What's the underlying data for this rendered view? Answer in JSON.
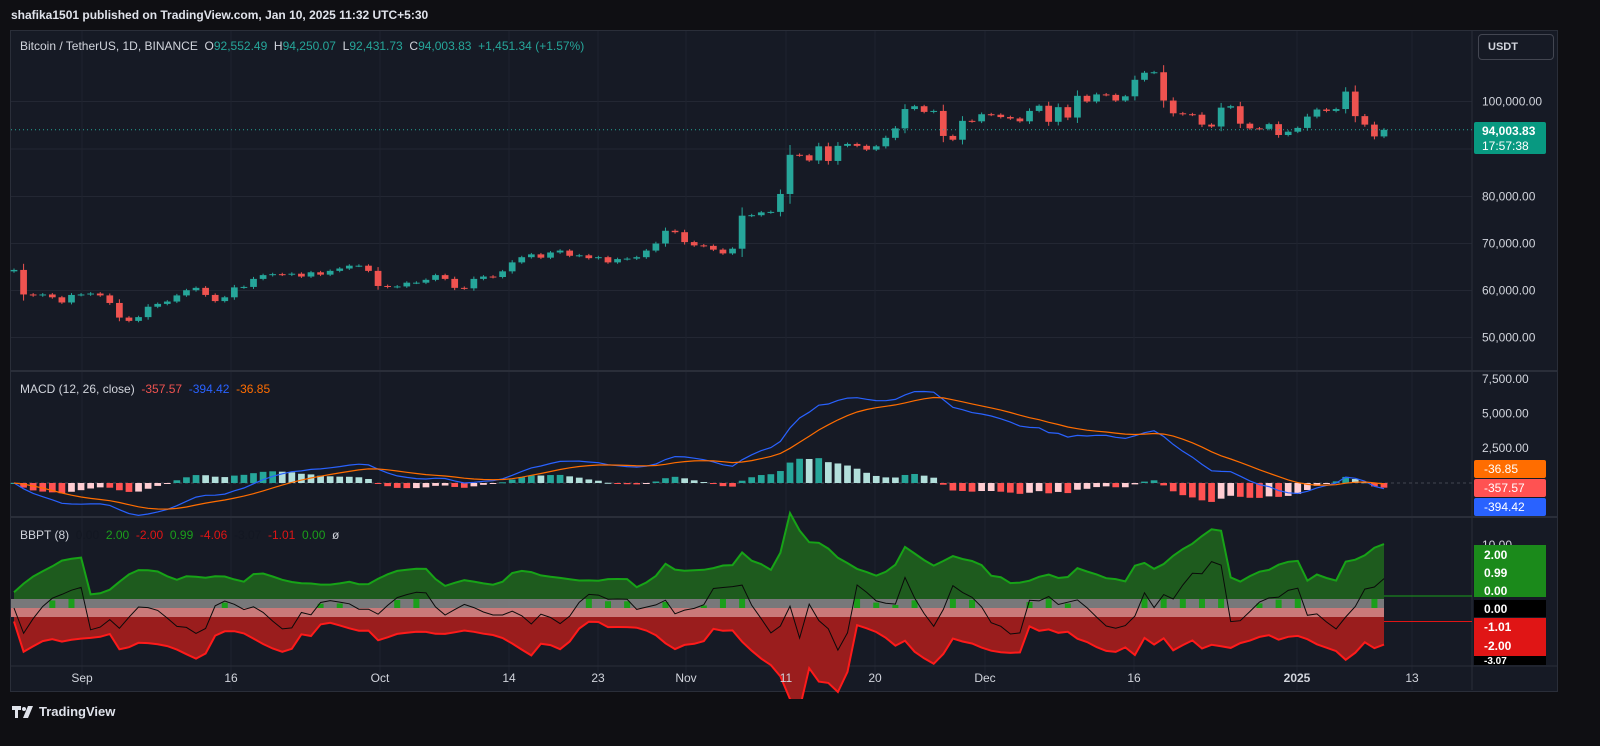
{
  "header": {
    "published": "shafika1501 published on TradingView.com, Jan 10, 2025 11:32 UTC+5:30"
  },
  "symbol": {
    "name": "Bitcoin / TetherUS, 1D, BINANCE",
    "o_label": "O",
    "o_value": "92,552.49",
    "h_label": "H",
    "h_value": "94,250.07",
    "l_label": "L",
    "l_value": "92,431.73",
    "c_label": "C",
    "c_value": "94,003.83",
    "change": "+1,451.34 (+1.57%)"
  },
  "currency_button": "USDT",
  "price_badge": {
    "price": "94,003.83",
    "countdown": "17:57:38"
  },
  "macd_legend": {
    "name": "MACD (12, 26, close)",
    "v1": "-357.57",
    "v2": "-394.42",
    "v3": "-36.85"
  },
  "bbpt_legend": {
    "name": "BBPT (8)",
    "values": [
      "0.00",
      "2.00",
      "-2.00",
      "0.99",
      "-4.06",
      "-3.07",
      "-1.01",
      "0.00",
      "ø"
    ]
  },
  "footer": {
    "brand": "TradingView"
  },
  "colors": {
    "up": "#26a69a",
    "down": "#ef5350",
    "macd": "#2962ff",
    "signal": "#ff6d00",
    "bull_green": "#1b7a1b",
    "bear_red": "#e01515",
    "background": "#161a25"
  },
  "chart_data": [
    {
      "type": "candlestick",
      "title": "Bitcoin / TetherUS, 1D, BINANCE",
      "x_ticks": [
        "Sep",
        "16",
        "Oct",
        "14",
        "23",
        "Nov",
        "11",
        "20",
        "Dec",
        "16",
        "2025",
        "13"
      ],
      "y_ticks": [
        "100,000.00",
        "80,000.00",
        "70,000.00",
        "60,000.00",
        "50,000.00"
      ],
      "ylim": [
        40000,
        110000
      ],
      "last_price": 94003.83,
      "closes": [
        64300,
        59100,
        58900,
        59100,
        58500,
        57400,
        59000,
        59100,
        59300,
        58900,
        57300,
        54200,
        53500,
        54300,
        56500,
        57100,
        57600,
        58900,
        60000,
        60500,
        59000,
        57700,
        58500,
        60600,
        60700,
        62400,
        63200,
        63400,
        63300,
        63500,
        62900,
        63800,
        63300,
        64100,
        64600,
        65200,
        65200,
        64100,
        60900,
        60700,
        60800,
        61600,
        61600,
        62200,
        63200,
        62400,
        60500,
        60400,
        62400,
        62900,
        62800,
        64000,
        65900,
        67000,
        67600,
        66900,
        68000,
        68400,
        67300,
        67400,
        66800,
        67000,
        65900,
        66600,
        66700,
        67000,
        68400,
        69900,
        72600,
        72300,
        70200,
        69500,
        69400,
        68600,
        67800,
        68800,
        75800,
        75900,
        76500,
        76600,
        80400,
        88700,
        88600,
        87500,
        90500,
        87400,
        90600,
        91000,
        90600,
        89800,
        90500,
        92300,
        94300,
        98400,
        99000,
        97800,
        98000,
        92700,
        91900,
        95900,
        95800,
        97300,
        97200,
        96700,
        96400,
        95800,
        98000,
        99100,
        95700,
        98800,
        96600,
        101200,
        100000,
        101500,
        101400,
        100200,
        101100,
        104600,
        106100,
        106200,
        100200,
        97500,
        97300,
        97200,
        95100,
        94700,
        98700,
        99000,
        95300,
        94300,
        94200,
        95200,
        92900,
        93600,
        94400,
        96800,
        98300,
        98000,
        98400,
        102100,
        96900,
        95100,
        92600,
        94000
      ]
    },
    {
      "type": "line",
      "title": "MACD (12, 26, close)",
      "series": [
        {
          "name": "MACD",
          "current": -394.42
        },
        {
          "name": "Signal",
          "current": -36.85
        },
        {
          "name": "Histogram",
          "current": -357.57
        }
      ],
      "y_ticks": [
        "7,500.00",
        "5,000.00",
        "2,500.00"
      ]
    },
    {
      "type": "area",
      "title": "BBPT (8)",
      "y_ticks": [
        "10.00",
        "2.00",
        "0.99",
        "0.00",
        "0.00",
        "-1.01",
        "-2.00",
        "-3.07"
      ]
    }
  ]
}
